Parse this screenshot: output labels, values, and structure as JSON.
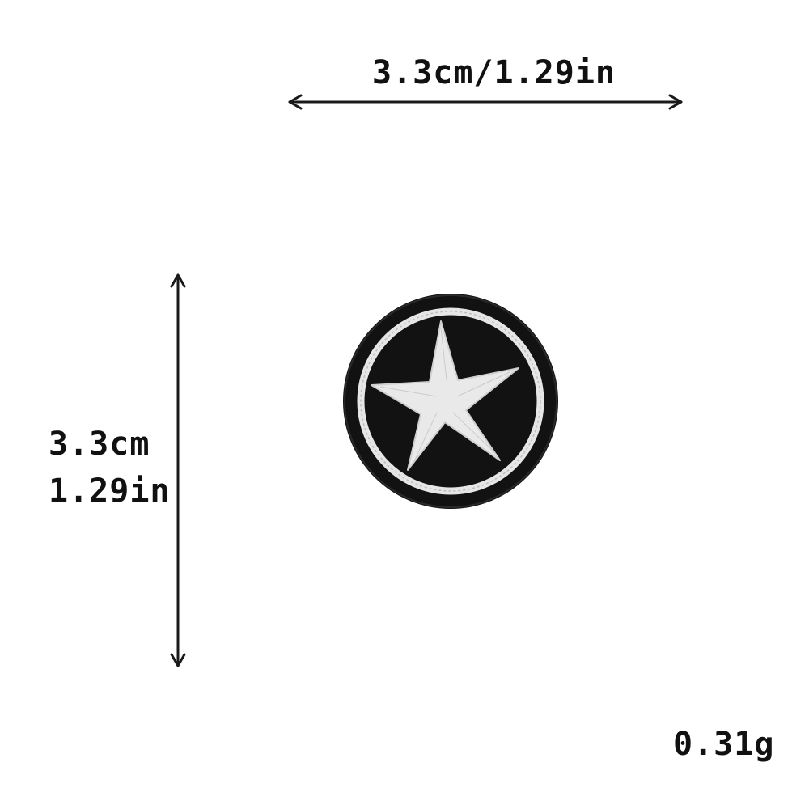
{
  "dimensions": {
    "width_text": "3.3cm/1.29in",
    "height_cm": "3.3cm",
    "height_in": "1.29in"
  },
  "weight": "0.31g",
  "patch": {
    "description_icon": "star-in-circle",
    "background_color": "#121212",
    "embroidery_color": "#e6e6e6"
  },
  "arrow_color": "#1a1a1a"
}
